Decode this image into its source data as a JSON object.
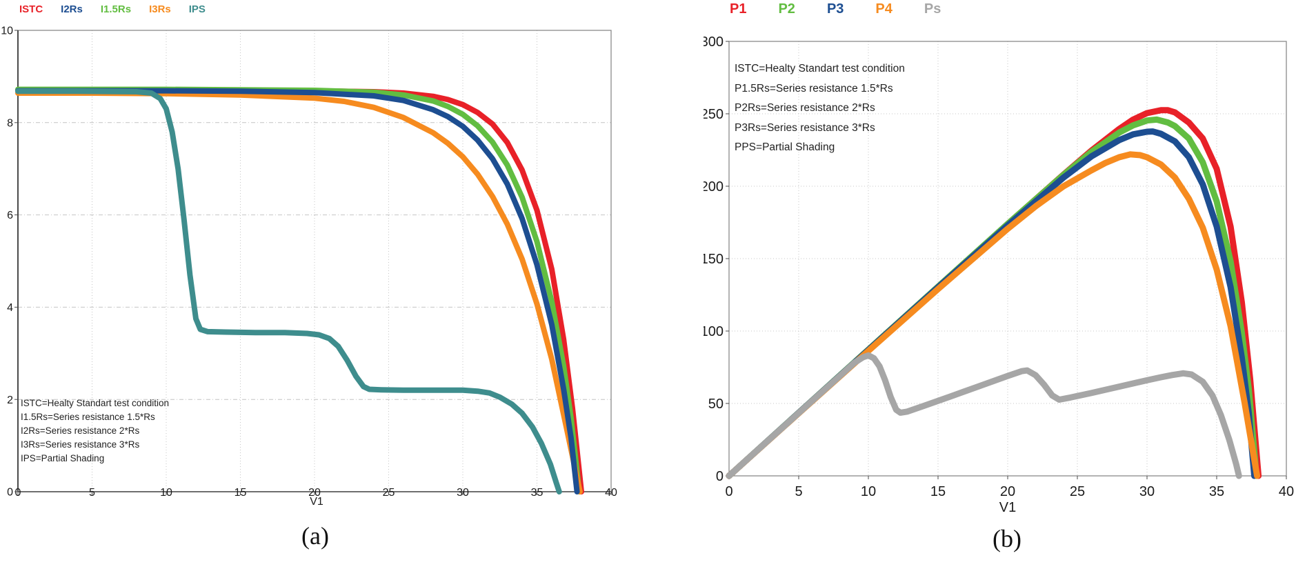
{
  "colors": {
    "red": "#e82128",
    "green": "#62bd41",
    "blue": "#1d4e91",
    "orange": "#f68b1f",
    "teal": "#3e8d8d",
    "gray": "#a6a6a6",
    "grid": "#c4c4c4",
    "border": "#8a8a8a",
    "axis_dark": "#4a4a4a",
    "text": "#1a1a1a"
  },
  "chart_data": [
    {
      "id": "a",
      "type": "line",
      "caption": "(a)",
      "xlabel": "V1",
      "ylabel": "",
      "xlim": [
        0,
        40
      ],
      "ylim": [
        0,
        10
      ],
      "xticks": [
        0,
        5,
        10,
        15,
        20,
        25,
        30,
        35,
        40
      ],
      "yticks": [
        0,
        2,
        4,
        6,
        8,
        10
      ],
      "grid": true,
      "legend_position": "top-left",
      "legend": [
        {
          "label": "ISTC",
          "color": "#e82128"
        },
        {
          "label": "I2Rs",
          "color": "#1d4e91"
        },
        {
          "label": "I1.5Rs",
          "color": "#62bd41"
        },
        {
          "label": "I3Rs",
          "color": "#f68b1f"
        },
        {
          "label": "IPS",
          "color": "#3e8d8d"
        }
      ],
      "annotation": [
        "ISTC=Healty Standart test condition",
        "I1.5Rs=Series resistance 1.5*Rs",
        "I2Rs=Series resistance 2*Rs",
        "I3Rs=Series resistance 3*Rs",
        "IPS=Partial Shading"
      ],
      "series": [
        {
          "name": "ISTC",
          "color": "#e82128",
          "points": [
            [
              0,
              8.7
            ],
            [
              5,
              8.7
            ],
            [
              10,
              8.7
            ],
            [
              15,
              8.7
            ],
            [
              20,
              8.69
            ],
            [
              24,
              8.67
            ],
            [
              26,
              8.64
            ],
            [
              28,
              8.57
            ],
            [
              29,
              8.5
            ],
            [
              30,
              8.39
            ],
            [
              31,
              8.22
            ],
            [
              32,
              7.97
            ],
            [
              33,
              7.57
            ],
            [
              34,
              6.97
            ],
            [
              35,
              6.1
            ],
            [
              36,
              4.82
            ],
            [
              36.8,
              3.3
            ],
            [
              37.4,
              1.8
            ],
            [
              38,
              0
            ]
          ]
        },
        {
          "name": "I1.5Rs",
          "color": "#62bd41",
          "points": [
            [
              0,
              8.72
            ],
            [
              5,
              8.72
            ],
            [
              10,
              8.72
            ],
            [
              15,
              8.71
            ],
            [
              20,
              8.7
            ],
            [
              24,
              8.66
            ],
            [
              26,
              8.6
            ],
            [
              28,
              8.47
            ],
            [
              29,
              8.35
            ],
            [
              30,
              8.18
            ],
            [
              31,
              7.93
            ],
            [
              32,
              7.58
            ],
            [
              33,
              7.08
            ],
            [
              34,
              6.38
            ],
            [
              35,
              5.42
            ],
            [
              36,
              4.12
            ],
            [
              36.8,
              2.72
            ],
            [
              37.3,
              1.6
            ],
            [
              37.85,
              0
            ]
          ]
        },
        {
          "name": "I3Rs",
          "color": "#f68b1f",
          "points": [
            [
              0,
              8.64
            ],
            [
              5,
              8.64
            ],
            [
              10,
              8.63
            ],
            [
              15,
              8.6
            ],
            [
              20,
              8.53
            ],
            [
              22,
              8.46
            ],
            [
              24,
              8.33
            ],
            [
              26,
              8.11
            ],
            [
              28,
              7.78
            ],
            [
              29,
              7.55
            ],
            [
              30,
              7.26
            ],
            [
              31,
              6.88
            ],
            [
              32,
              6.4
            ],
            [
              33,
              5.8
            ],
            [
              34,
              5.04
            ],
            [
              35,
              4.07
            ],
            [
              36,
              2.87
            ],
            [
              37,
              1.37
            ],
            [
              37.9,
              0
            ]
          ]
        },
        {
          "name": "I2Rs",
          "color": "#1d4e91",
          "points": [
            [
              0,
              8.69
            ],
            [
              5,
              8.69
            ],
            [
              10,
              8.69
            ],
            [
              15,
              8.68
            ],
            [
              20,
              8.65
            ],
            [
              24,
              8.58
            ],
            [
              26,
              8.48
            ],
            [
              28,
              8.28
            ],
            [
              29,
              8.13
            ],
            [
              30,
              7.92
            ],
            [
              31,
              7.62
            ],
            [
              32,
              7.22
            ],
            [
              33,
              6.67
            ],
            [
              34,
              5.92
            ],
            [
              35,
              4.92
            ],
            [
              36,
              3.62
            ],
            [
              36.8,
              2.22
            ],
            [
              37.3,
              1.17
            ],
            [
              37.7,
              0
            ]
          ]
        },
        {
          "name": "IPS",
          "color": "#3e8d8d",
          "points": [
            [
              0,
              8.68
            ],
            [
              4,
              8.68
            ],
            [
              8,
              8.67
            ],
            [
              9,
              8.64
            ],
            [
              9.6,
              8.52
            ],
            [
              10,
              8.3
            ],
            [
              10.4,
              7.8
            ],
            [
              10.8,
              7.0
            ],
            [
              11.2,
              5.9
            ],
            [
              11.6,
              4.7
            ],
            [
              12,
              3.75
            ],
            [
              12.3,
              3.52
            ],
            [
              12.8,
              3.47
            ],
            [
              14,
              3.46
            ],
            [
              16,
              3.45
            ],
            [
              18,
              3.45
            ],
            [
              19.5,
              3.43
            ],
            [
              20.3,
              3.4
            ],
            [
              21,
              3.32
            ],
            [
              21.6,
              3.15
            ],
            [
              22.2,
              2.85
            ],
            [
              22.8,
              2.5
            ],
            [
              23.3,
              2.28
            ],
            [
              23.7,
              2.22
            ],
            [
              24.5,
              2.21
            ],
            [
              26,
              2.2
            ],
            [
              28,
              2.2
            ],
            [
              30,
              2.2
            ],
            [
              31,
              2.18
            ],
            [
              31.8,
              2.14
            ],
            [
              32.5,
              2.05
            ],
            [
              33.3,
              1.9
            ],
            [
              34,
              1.7
            ],
            [
              34.7,
              1.4
            ],
            [
              35.3,
              1.05
            ],
            [
              35.9,
              0.6
            ],
            [
              36.3,
              0.2
            ],
            [
              36.5,
              0
            ]
          ]
        }
      ]
    },
    {
      "id": "b",
      "type": "line",
      "caption": "(b)",
      "xlabel": "V1",
      "ylabel": "",
      "xlim": [
        0,
        40
      ],
      "ylim": [
        0,
        300
      ],
      "xticks": [
        0,
        5,
        10,
        15,
        20,
        25,
        30,
        35,
        40
      ],
      "yticks": [
        0,
        50,
        100,
        150,
        200,
        250,
        300
      ],
      "grid": true,
      "legend_position": "top-left",
      "legend": [
        {
          "label": "P1",
          "color": "#e82128"
        },
        {
          "label": "P2",
          "color": "#62bd41"
        },
        {
          "label": "P3",
          "color": "#1d4e91"
        },
        {
          "label": "P4",
          "color": "#f68b1f"
        },
        {
          "label": "Ps",
          "color": "#a6a6a6"
        }
      ],
      "annotation": [
        "ISTC=Healty Standart test condition",
        "P1.5Rs=Series resistance 1.5*Rs",
        "P2Rs=Series resistance 2*Rs",
        "P3Rs=Series resistance 3*Rs",
        "PPS=Partial Shading"
      ],
      "series": [
        {
          "name": "P1",
          "color": "#e82128",
          "points": [
            [
              0,
              0
            ],
            [
              5,
              43.5
            ],
            [
              10,
              87
            ],
            [
              15,
              130.5
            ],
            [
              20,
              173.8
            ],
            [
              24,
              208
            ],
            [
              26,
              224.5
            ],
            [
              28,
              239.5
            ],
            [
              29,
              246
            ],
            [
              30,
              250.5
            ],
            [
              31,
              252.5
            ],
            [
              31.5,
              252.5
            ],
            [
              32,
              251
            ],
            [
              33,
              244
            ],
            [
              34,
              233
            ],
            [
              35,
              212
            ],
            [
              36,
              172
            ],
            [
              36.8,
              120
            ],
            [
              37.4,
              67
            ],
            [
              38,
              0
            ]
          ]
        },
        {
          "name": "P2",
          "color": "#62bd41",
          "points": [
            [
              0,
              0
            ],
            [
              5,
              43.6
            ],
            [
              10,
              87.2
            ],
            [
              15,
              130.6
            ],
            [
              20,
              174
            ],
            [
              24,
              207.8
            ],
            [
              26,
              223.6
            ],
            [
              28,
              237
            ],
            [
              29,
              242
            ],
            [
              30,
              245.4
            ],
            [
              30.7,
              246
            ],
            [
              31.5,
              244
            ],
            [
              32,
              241.5
            ],
            [
              33,
              233
            ],
            [
              34,
              216.5
            ],
            [
              35,
              189.5
            ],
            [
              36,
              148
            ],
            [
              36.8,
              99
            ],
            [
              37.3,
              60
            ],
            [
              37.85,
              0
            ]
          ]
        },
        {
          "name": "P3",
          "color": "#1d4e91",
          "points": [
            [
              0,
              0
            ],
            [
              5,
              43.5
            ],
            [
              10,
              86.9
            ],
            [
              15,
              130.2
            ],
            [
              20,
              173
            ],
            [
              24,
              205.9
            ],
            [
              26,
              220.5
            ],
            [
              28,
              231.8
            ],
            [
              29,
              235.8
            ],
            [
              30,
              237.6
            ],
            [
              30.4,
              237.8
            ],
            [
              31,
              236.2
            ],
            [
              32,
              231
            ],
            [
              33,
              220.1
            ],
            [
              34,
              201.3
            ],
            [
              35,
              172.2
            ],
            [
              36,
              130.3
            ],
            [
              36.8,
              81.7
            ],
            [
              37.3,
              43.6
            ],
            [
              37.7,
              0
            ]
          ]
        },
        {
          "name": "P4",
          "color": "#f68b1f",
          "points": [
            [
              0,
              0
            ],
            [
              5,
              43.2
            ],
            [
              10,
              86.3
            ],
            [
              15,
              129
            ],
            [
              20,
              170.6
            ],
            [
              22,
              186.1
            ],
            [
              24,
              199.9
            ],
            [
              26,
              210.9
            ],
            [
              27,
              216
            ],
            [
              28,
              220
            ],
            [
              28.8,
              222
            ],
            [
              29.5,
              221.5
            ],
            [
              30,
              220
            ],
            [
              31,
              215
            ],
            [
              32,
              206
            ],
            [
              33,
              191.4
            ],
            [
              34,
              171.4
            ],
            [
              35,
              142.5
            ],
            [
              36,
              103.3
            ],
            [
              37,
              50.7
            ],
            [
              37.9,
              0
            ]
          ]
        },
        {
          "name": "Ps",
          "color": "#a6a6a6",
          "points": [
            [
              0,
              0
            ],
            [
              2,
              17.4
            ],
            [
              4,
              34.7
            ],
            [
              6,
              52.1
            ],
            [
              8,
              69.4
            ],
            [
              9,
              78.1
            ],
            [
              9.6,
              81.8
            ],
            [
              10,
              83.2
            ],
            [
              10.4,
              81.2
            ],
            [
              10.8,
              75.6
            ],
            [
              11.2,
              66.1
            ],
            [
              11.6,
              54.5
            ],
            [
              12,
              45.6
            ],
            [
              12.3,
              43.6
            ],
            [
              12.8,
              44.4
            ],
            [
              14,
              48.4
            ],
            [
              16,
              55.2
            ],
            [
              18,
              62.1
            ],
            [
              20,
              69
            ],
            [
              21,
              72.3
            ],
            [
              21.4,
              72.8
            ],
            [
              22,
              69.5
            ],
            [
              22.6,
              63.1
            ],
            [
              23.2,
              55.5
            ],
            [
              23.7,
              52.6
            ],
            [
              24.5,
              54.1
            ],
            [
              26,
              57.2
            ],
            [
              28,
              61.6
            ],
            [
              30,
              66
            ],
            [
              31,
              68.1
            ],
            [
              31.8,
              69.6
            ],
            [
              32.6,
              70.8
            ],
            [
              33.2,
              70
            ],
            [
              34,
              65
            ],
            [
              34.7,
              55.5
            ],
            [
              35.3,
              42
            ],
            [
              35.9,
              25
            ],
            [
              36.4,
              8
            ],
            [
              36.6,
              0
            ]
          ]
        }
      ]
    }
  ]
}
